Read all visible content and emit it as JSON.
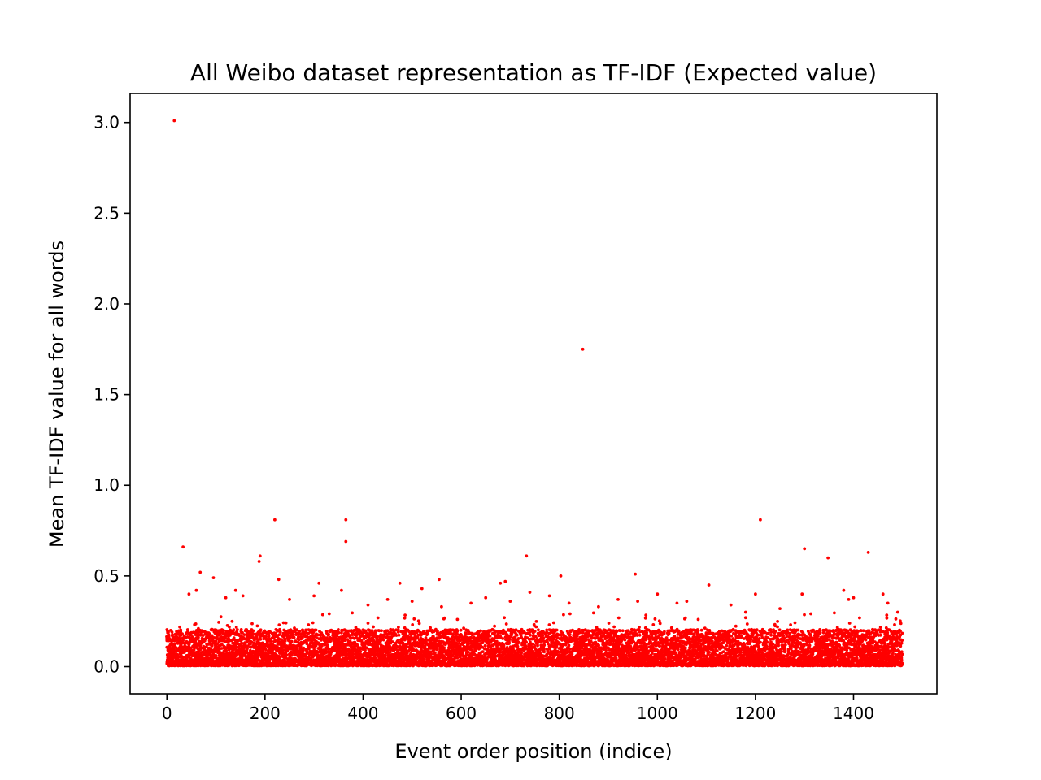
{
  "chart_data": {
    "type": "scatter",
    "title": "All Weibo dataset representation as TF-IDF (Expected value)",
    "xlabel": "Event order position (indice)",
    "ylabel": "Mean TF-IDF value for all words",
    "xlim": [
      -75,
      1570
    ],
    "ylim": [
      -0.15,
      3.16
    ],
    "x_ticks": [
      0,
      200,
      400,
      600,
      800,
      1000,
      1200,
      1400
    ],
    "x_tick_labels": [
      "0",
      "200",
      "400",
      "600",
      "800",
      "1000",
      "1200",
      "1400"
    ],
    "y_ticks": [
      0.0,
      0.5,
      1.0,
      1.5,
      2.0,
      2.5,
      3.0
    ],
    "y_tick_labels": [
      "0.0",
      "0.5",
      "1.0",
      "1.5",
      "2.0",
      "2.5",
      "3.0"
    ],
    "grid": false,
    "legend": "none",
    "marker_color": "#ff0000",
    "n_points": 1500,
    "series": [
      {
        "x": [
          15,
          848,
          33,
          220,
          365,
          365,
          1210,
          1300,
          1348,
          1430,
          733,
          955,
          803,
          1105,
          190,
          188,
          68,
          95,
          475,
          555,
          520,
          690,
          680,
          228,
          310,
          356,
          140,
          1380,
          1460,
          1295,
          960,
          60,
          45,
          120,
          155,
          250,
          300,
          410,
          450,
          500,
          560,
          620,
          650,
          700,
          740,
          780,
          820,
          880,
          920,
          1000,
          1040,
          1060,
          1150,
          1180,
          1200,
          1250,
          1390,
          1400,
          1470,
          1490
        ],
        "y": [
          3.01,
          1.75,
          0.66,
          0.81,
          0.81,
          0.69,
          0.81,
          0.65,
          0.6,
          0.63,
          0.61,
          0.51,
          0.5,
          0.45,
          0.61,
          0.58,
          0.52,
          0.49,
          0.46,
          0.48,
          0.43,
          0.47,
          0.46,
          0.48,
          0.46,
          0.42,
          0.42,
          0.42,
          0.4,
          0.4,
          0.36,
          0.42,
          0.4,
          0.38,
          0.39,
          0.37,
          0.39,
          0.34,
          0.37,
          0.36,
          0.33,
          0.35,
          0.38,
          0.36,
          0.41,
          0.39,
          0.35,
          0.33,
          0.37,
          0.4,
          0.35,
          0.36,
          0.34,
          0.3,
          0.4,
          0.32,
          0.37,
          0.38,
          0.35,
          0.3
        ]
      }
    ]
  }
}
